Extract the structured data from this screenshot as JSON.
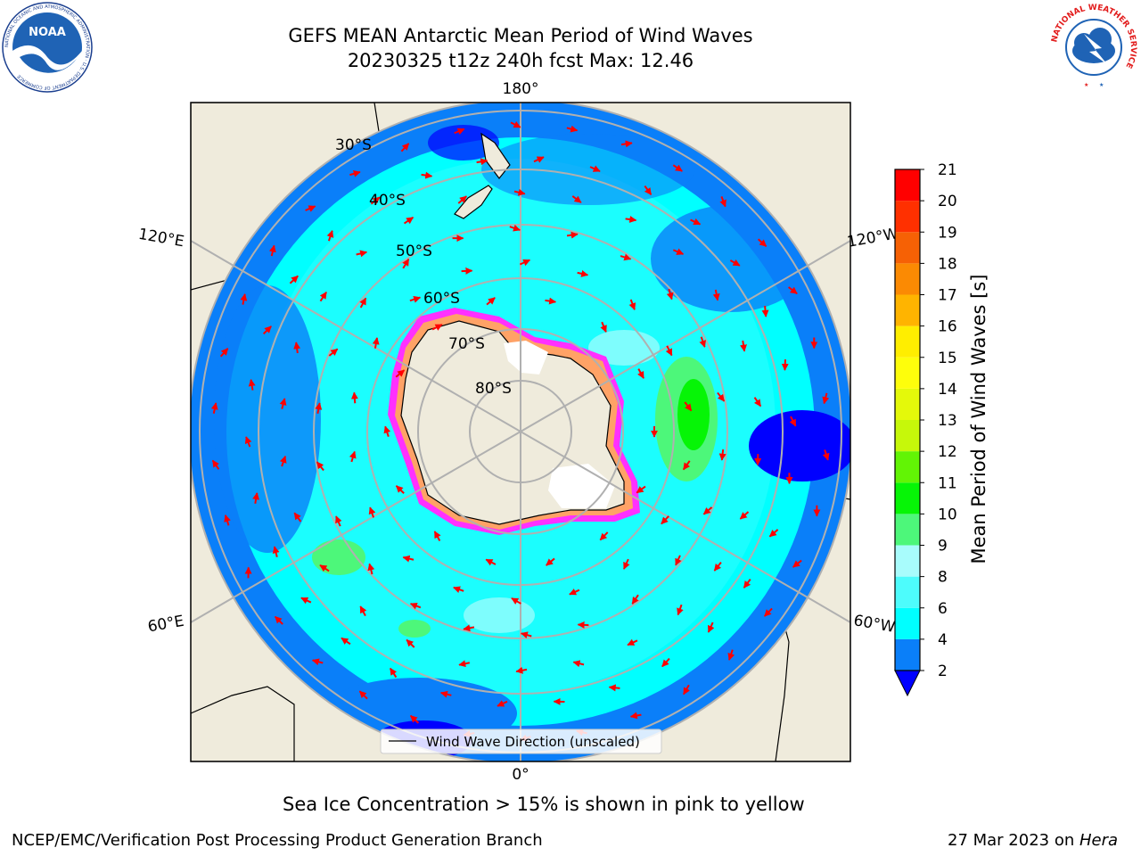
{
  "header": {
    "title_line1": "GEFS MEAN Antarctic Mean Period of Wind Waves",
    "title_line2": "20230325 t12z 240h fcst   Max: 12.46"
  },
  "map": {
    "projection": "south polar stereographic",
    "longitude_labels": [
      "180°",
      "120°E",
      "120°W",
      "60°E",
      "60°W",
      "0°"
    ],
    "latitude_labels": [
      "30°S",
      "40°S",
      "50°S",
      "60°S",
      "70°S",
      "80°S"
    ],
    "legend_label": "Wind Wave Direction (unscaled)",
    "arrow_color": "#ff0000",
    "land_color": "#efebdc"
  },
  "colorbar": {
    "label": "Mean Period of Wind Waves [s]",
    "ticks": [
      "2",
      "4",
      "6",
      "8",
      "9",
      "10",
      "11",
      "12",
      "13",
      "14",
      "15",
      "16",
      "17",
      "18",
      "19",
      "20",
      "21"
    ],
    "colors": [
      "#0a7ff9",
      "#00ffff",
      "#4dfcfc",
      "#a8fcfc",
      "#4df77a",
      "#06f506",
      "#62f405",
      "#c6f80a",
      "#e4f90a",
      "#fefe0b",
      "#ffee00",
      "#ffb400",
      "#fb8a03",
      "#f66105",
      "#ff3000",
      "#ff0000"
    ],
    "under_color": "#0000ff"
  },
  "caption": "Sea Ice Concentration > 15% is shown in pink to yellow",
  "footer": {
    "left": "NCEP/EMC/Verification Post Processing Product Generation Branch",
    "right_date": "27 Mar 2023 on ",
    "right_host": "Hera"
  },
  "logos": {
    "noaa_text": "NOAA",
    "noaa_ring": "NATIONAL OCEANIC AND ATMOSPHERIC ADMINISTRATION · U.S. DEPARTMENT OF COMMERCE",
    "nws_ring": "NATIONAL WEATHER SERVICE"
  }
}
